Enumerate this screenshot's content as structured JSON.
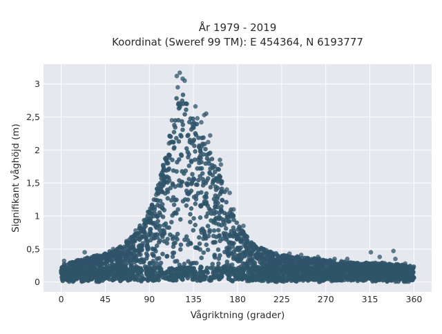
{
  "chart_data": {
    "type": "scatter",
    "title_lines": [
      "År 1979 - 2019",
      "Koordinat (Sweref 99 TM): E 454364, N 6193777"
    ],
    "xlabel": "Vågriktning (grader)",
    "ylabel": "Signifikant våghöjd (m)",
    "xlim": [
      -18,
      378
    ],
    "ylim": [
      -0.15,
      3.3
    ],
    "xticks": [
      0,
      45,
      90,
      135,
      180,
      225,
      270,
      315,
      360
    ],
    "xtick_labels": [
      "0",
      "45",
      "90",
      "135",
      "180",
      "225",
      "270",
      "315",
      "360"
    ],
    "yticks": [
      0,
      0.5,
      1,
      1.5,
      2,
      2.5,
      3
    ],
    "ytick_labels": [
      "0",
      "0,5",
      "1",
      "1,5",
      "2",
      "2,5",
      "3"
    ],
    "grid": true,
    "point_color": "#2f5468",
    "plot_background": "#e5e8ef",
    "series": [
      {
        "envelope_description_points": [
          [
            0,
            0.3
          ],
          [
            15,
            0.33
          ],
          [
            30,
            0.4
          ],
          [
            45,
            0.45
          ],
          [
            60,
            0.55
          ],
          [
            75,
            0.75
          ],
          [
            85,
            1.0
          ],
          [
            95,
            1.3
          ],
          [
            105,
            1.9
          ],
          [
            110,
            2.3
          ],
          [
            115,
            2.7
          ],
          [
            120,
            3.1
          ],
          [
            125,
            3.0
          ],
          [
            130,
            2.7
          ],
          [
            140,
            2.5
          ],
          [
            150,
            2.1
          ],
          [
            160,
            1.8
          ],
          [
            170,
            1.3
          ],
          [
            180,
            0.9
          ],
          [
            195,
            0.6
          ],
          [
            210,
            0.5
          ],
          [
            225,
            0.42
          ],
          [
            240,
            0.4
          ],
          [
            270,
            0.35
          ],
          [
            300,
            0.3
          ],
          [
            330,
            0.3
          ],
          [
            360,
            0.25
          ]
        ],
        "outliers": [
          [
            121,
            3.17
          ],
          [
            118,
            3.12
          ],
          [
            124,
            3.08
          ],
          [
            126,
            3.05
          ],
          [
            119,
            2.95
          ],
          [
            137,
            2.66
          ],
          [
            146,
            2.53
          ],
          [
            148,
            2.55
          ],
          [
            143,
            2.42
          ],
          [
            139,
            2.48
          ],
          [
            152,
            2.22
          ],
          [
            150,
            2.12
          ],
          [
            162,
            1.85
          ],
          [
            163,
            1.78
          ],
          [
            169,
            1.4
          ],
          [
            172,
            1.35
          ],
          [
            176,
            1.1
          ],
          [
            186,
            0.85
          ],
          [
            194,
            0.6
          ],
          [
            204,
            0.42
          ],
          [
            233,
            0.43
          ],
          [
            245,
            0.41
          ],
          [
            262,
            0.38
          ],
          [
            279,
            0.35
          ],
          [
            292,
            0.35
          ],
          [
            316,
            0.45
          ],
          [
            325,
            0.38
          ],
          [
            339,
            0.47
          ],
          [
            341,
            0.35
          ],
          [
            351,
            0.28
          ],
          [
            24,
            0.45
          ],
          [
            39,
            0.38
          ],
          [
            53,
            0.5
          ],
          [
            58,
            0.5
          ],
          [
            67,
            0.6
          ],
          [
            76,
            0.78
          ],
          [
            80,
            0.82
          ],
          [
            86,
            0.92
          ],
          [
            90,
            1.05
          ],
          [
            93,
            1.12
          ],
          [
            97,
            1.32
          ],
          [
            101,
            1.5
          ],
          [
            104,
            1.62
          ],
          [
            107,
            1.85
          ],
          [
            110,
            2.1
          ],
          [
            113,
            2.45
          ],
          [
            3,
            0.32
          ],
          [
            11,
            0.3
          ],
          [
            17,
            0.33
          ]
        ]
      }
    ]
  }
}
